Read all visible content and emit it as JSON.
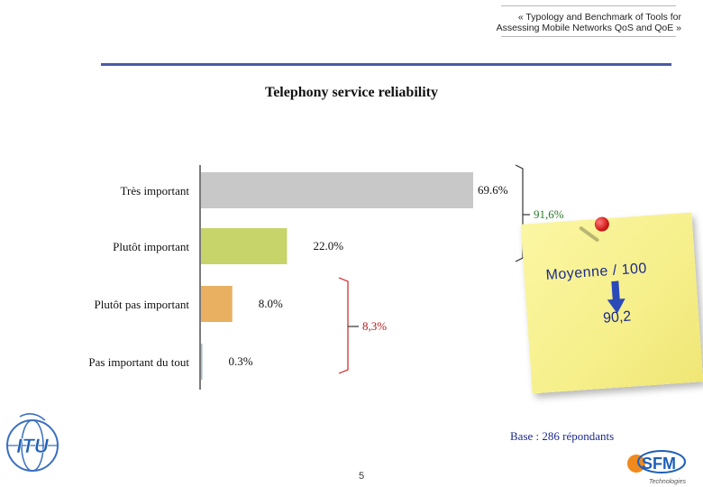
{
  "header": {
    "subtitle_line1": "« Typology and Benchmark of Tools for",
    "subtitle_line2": "Assessing Mobile Networks QoS and QoE »"
  },
  "chart_data": {
    "type": "bar",
    "orientation": "horizontal",
    "title": "Telephony service reliability",
    "categories": [
      "Très important",
      "Plutôt important",
      "Plutôt pas important",
      "Pas important du tout"
    ],
    "values": [
      69.6,
      22.0,
      8.0,
      0.3
    ],
    "value_labels": [
      "69.6%",
      "22.0%",
      "8.0%",
      "0.3%"
    ],
    "colors": [
      "#c8c8c8",
      "#c6d46a",
      "#e8b060",
      "#9bbbd6"
    ],
    "xlim": [
      0,
      100
    ],
    "grid": false,
    "annotations": {
      "top_group_label": "91,6%",
      "top_group_color": "#2a7a2a",
      "bottom_group_label": "8,3%",
      "bottom_group_color": "#c01818"
    }
  },
  "sticky_note": {
    "label": "Moyenne / 100",
    "value": "90,2"
  },
  "footer": {
    "base": "Base : 286 répondants",
    "page_number": "5",
    "itu_logo": "ITU",
    "sfm_logo": "SFM",
    "sfm_sub": "Technologies"
  }
}
